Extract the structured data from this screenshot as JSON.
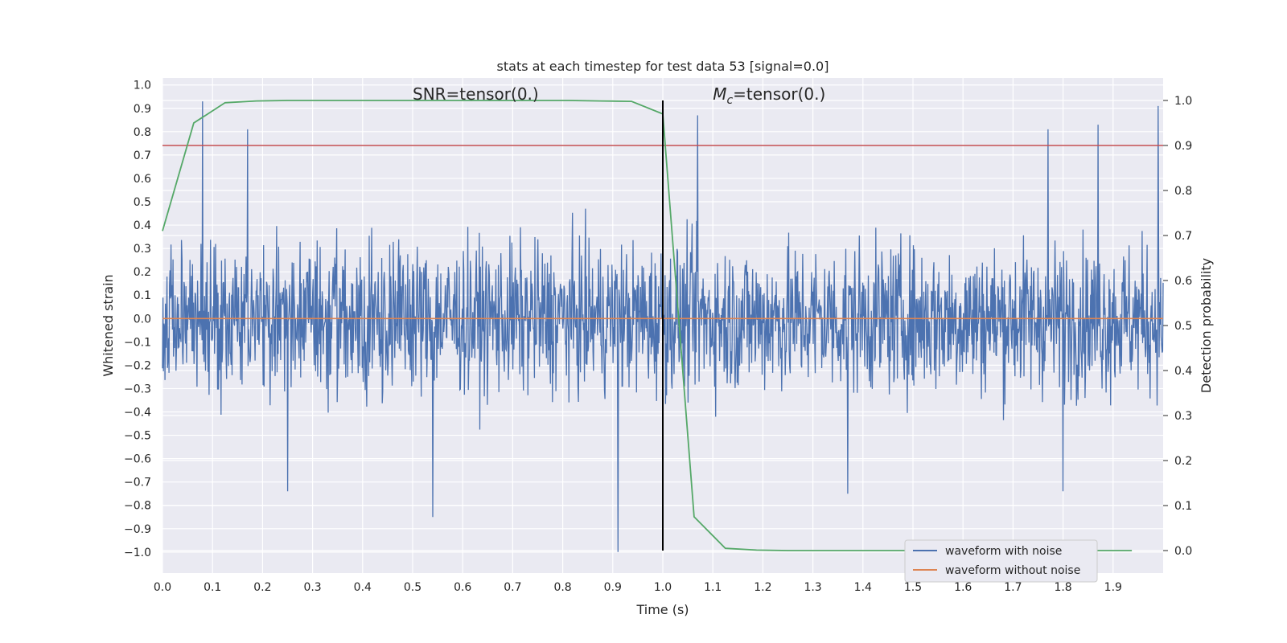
{
  "chart_data": {
    "type": "line",
    "title": "stats at each timestep for test data 53 [signal=0.0]",
    "xlabel": "Time (s)",
    "ylabel_left": "Whitened strain",
    "ylabel_right": "Detection probability",
    "xlim": [
      0.0,
      2.0
    ],
    "ylim_left": [
      -1.09,
      1.03
    ],
    "ylim_right": [
      -0.05,
      1.05
    ],
    "x_ticks": [
      "0.0",
      "0.1",
      "0.2",
      "0.3",
      "0.4",
      "0.5",
      "0.6",
      "0.7",
      "0.8",
      "0.9",
      "1.0",
      "1.1",
      "1.2",
      "1.3",
      "1.4",
      "1.5",
      "1.6",
      "1.7",
      "1.8",
      "1.9"
    ],
    "y_ticks_left": [
      "1.0",
      "0.9",
      "0.8",
      "0.7",
      "0.6",
      "0.5",
      "0.4",
      "0.3",
      "0.2",
      "0.1",
      "0.0",
      "−0.1",
      "−0.2",
      "−0.3",
      "−0.4",
      "−0.5",
      "−0.6",
      "−0.7",
      "−0.8",
      "−0.9",
      "−1.0"
    ],
    "y_ticks_right": [
      "1.0",
      "0.9",
      "0.8",
      "0.7",
      "0.6",
      "0.5",
      "0.4",
      "0.3",
      "0.2",
      "0.1",
      "0.0"
    ],
    "grid": true,
    "legend_position": "lower-right",
    "series": [
      {
        "name": "waveform with noise",
        "axis": "left",
        "color": "#4c72b0",
        "noise_amplitude": 0.45,
        "x_range": [
          0.0,
          2.0
        ],
        "peaks": [
          [
            0.08,
            0.93
          ],
          [
            0.17,
            0.81
          ],
          [
            1.07,
            0.87
          ],
          [
            1.77,
            0.81
          ],
          [
            1.87,
            0.83
          ],
          [
            1.99,
            0.91
          ],
          [
            0.54,
            -0.85
          ],
          [
            0.91,
            -1.0
          ],
          [
            1.37,
            -0.75
          ],
          [
            1.8,
            -0.74
          ],
          [
            0.25,
            -0.74
          ]
        ]
      },
      {
        "name": "waveform without noise",
        "axis": "left",
        "color": "#dd8452",
        "x": [
          0.0,
          2.0
        ],
        "y": [
          0.0,
          0.0
        ]
      },
      {
        "name": "",
        "axis": "right",
        "color": "#55a868",
        "x": [
          0.0,
          0.0625,
          0.125,
          0.1875,
          0.25,
          0.3125,
          0.375,
          0.4375,
          0.5,
          0.5625,
          0.625,
          0.6875,
          0.75,
          0.8125,
          0.875,
          0.9375,
          1.0,
          1.0625,
          1.125,
          1.1875,
          1.25,
          1.3125,
          1.375,
          1.4375,
          1.5,
          1.5625,
          1.625,
          1.6875,
          1.75,
          1.8125,
          1.875,
          1.9375
        ],
        "y": [
          0.71,
          0.95,
          0.995,
          0.999,
          1.0,
          1.0,
          1.0,
          1.0,
          1.0,
          1.0,
          1.0,
          1.0,
          1.0,
          1.0,
          0.999,
          0.998,
          0.97,
          0.075,
          0.005,
          0.001,
          0.0,
          0.0,
          0.0,
          0.0,
          0.0,
          0.0,
          0.0,
          0.0,
          0.0,
          0.0,
          0.0,
          0.0
        ]
      }
    ],
    "threshold": {
      "axis": "right",
      "value": 0.9,
      "color": "#c44e52"
    },
    "marker_line": {
      "x": 1.0,
      "color": "#000000"
    },
    "annotations": [
      {
        "text_main": "SNR=tensor(0.)",
        "x": 0.5
      },
      {
        "text_main": "M",
        "text_sub": "c",
        "text_rest": "=tensor(0.)",
        "x": 1.1
      }
    ]
  }
}
